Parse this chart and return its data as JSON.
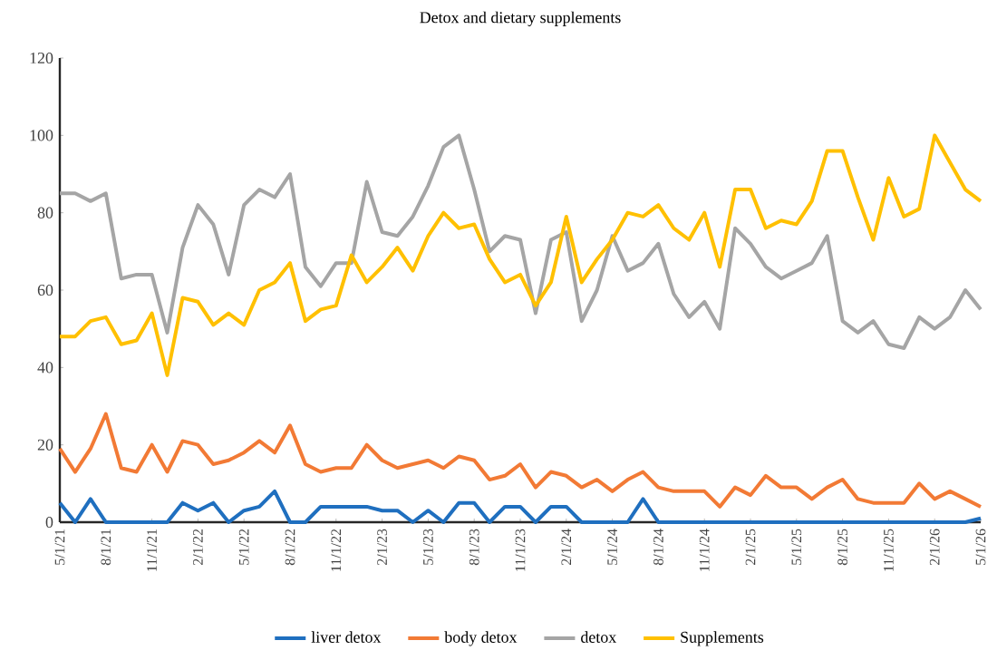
{
  "chart_data": {
    "type": "line",
    "title": "Detox and dietary supplements",
    "categories": [
      "5/1/21",
      null,
      null,
      "8/1/21",
      null,
      null,
      "11/1/21",
      null,
      null,
      "2/1/22",
      null,
      null,
      "5/1/22",
      null,
      null,
      "8/1/22",
      null,
      null,
      "11/1/22",
      null,
      null,
      "2/1/23",
      null,
      null,
      "5/1/23",
      null,
      null,
      "8/1/23",
      null,
      null,
      "11/1/23",
      null,
      null,
      "2/1/24",
      null,
      null,
      "5/1/24",
      null,
      null,
      "8/1/24",
      null,
      null,
      "11/1/24",
      null,
      null,
      "2/1/25",
      null,
      null,
      "5/1/25",
      null,
      null,
      "8/1/25",
      null,
      null,
      "11/1/25",
      null,
      null,
      "2/1/26",
      null,
      null,
      "5/1/26"
    ],
    "series": [
      {
        "name": "liver detox",
        "color": "#1f6fbf",
        "values": [
          5,
          0,
          6,
          0,
          0,
          0,
          0,
          0,
          5,
          3,
          5,
          0,
          3,
          4,
          8,
          0,
          0,
          4,
          4,
          4,
          4,
          3,
          3,
          0,
          3,
          0,
          5,
          5,
          0,
          4,
          4,
          0,
          4,
          4,
          0,
          0,
          0,
          0,
          6,
          0,
          0,
          0,
          0,
          0,
          0,
          0,
          0,
          0,
          0,
          0,
          0,
          0,
          0,
          0,
          0,
          0,
          0,
          0,
          0,
          0,
          1
        ]
      },
      {
        "name": "body detox",
        "color": "#f27a35",
        "values": [
          19,
          13,
          19,
          28,
          14,
          13,
          20,
          13,
          21,
          20,
          15,
          16,
          18,
          21,
          18,
          25,
          15,
          13,
          14,
          14,
          20,
          16,
          14,
          15,
          16,
          14,
          17,
          16,
          11,
          12,
          15,
          9,
          13,
          12,
          9,
          11,
          8,
          11,
          13,
          9,
          8,
          8,
          8,
          4,
          9,
          7,
          12,
          9,
          9,
          6,
          9,
          11,
          6,
          5,
          5,
          5,
          10,
          6,
          8,
          6,
          4
        ]
      },
      {
        "name": "detox",
        "color": "#a5a5a5",
        "values": [
          85,
          85,
          83,
          85,
          63,
          64,
          64,
          49,
          71,
          82,
          77,
          64,
          82,
          86,
          84,
          90,
          66,
          61,
          67,
          67,
          88,
          75,
          74,
          79,
          87,
          97,
          100,
          86,
          70,
          74,
          73,
          54,
          73,
          75,
          52,
          60,
          74,
          65,
          67,
          72,
          59,
          53,
          57,
          50,
          76,
          72,
          66,
          63,
          65,
          67,
          74,
          52,
          49,
          52,
          46,
          45,
          53,
          50,
          53,
          60,
          55
        ]
      },
      {
        "name": "Supplements",
        "color": "#ffc000",
        "values": [
          48,
          48,
          52,
          53,
          46,
          47,
          54,
          38,
          58,
          57,
          51,
          54,
          51,
          60,
          62,
          67,
          52,
          55,
          56,
          69,
          62,
          66,
          71,
          65,
          74,
          80,
          76,
          77,
          68,
          62,
          64,
          56,
          62,
          79,
          62,
          68,
          73,
          80,
          79,
          82,
          76,
          73,
          80,
          66,
          86,
          86,
          76,
          78,
          77,
          83,
          96,
          96,
          84,
          73,
          89,
          79,
          81,
          100,
          93,
          86,
          83
        ]
      }
    ],
    "ylim": [
      0,
      120
    ],
    "yticks": [
      0,
      20,
      40,
      60,
      80,
      100,
      120
    ],
    "legend": "bottom"
  }
}
